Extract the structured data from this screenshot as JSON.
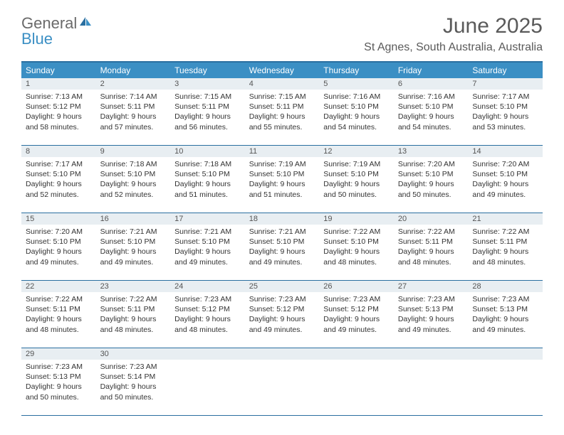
{
  "logo": {
    "text1": "General",
    "text2": "Blue"
  },
  "title": "June 2025",
  "location": "St Agnes, South Australia, Australia",
  "colors": {
    "header_bg": "#3b8fc4",
    "header_text": "#ffffff",
    "border": "#2a6fa0",
    "daynum_bg": "#e8eef2",
    "title_color": "#5a5a5a",
    "logo_gray": "#6a6a6a",
    "logo_blue": "#3b8fc4",
    "cell_text": "#333333"
  },
  "day_names": [
    "Sunday",
    "Monday",
    "Tuesday",
    "Wednesday",
    "Thursday",
    "Friday",
    "Saturday"
  ],
  "weeks": [
    [
      {
        "n": "1",
        "sr": "Sunrise: 7:13 AM",
        "ss": "Sunset: 5:12 PM",
        "dl": "Daylight: 9 hours and 58 minutes."
      },
      {
        "n": "2",
        "sr": "Sunrise: 7:14 AM",
        "ss": "Sunset: 5:11 PM",
        "dl": "Daylight: 9 hours and 57 minutes."
      },
      {
        "n": "3",
        "sr": "Sunrise: 7:15 AM",
        "ss": "Sunset: 5:11 PM",
        "dl": "Daylight: 9 hours and 56 minutes."
      },
      {
        "n": "4",
        "sr": "Sunrise: 7:15 AM",
        "ss": "Sunset: 5:11 PM",
        "dl": "Daylight: 9 hours and 55 minutes."
      },
      {
        "n": "5",
        "sr": "Sunrise: 7:16 AM",
        "ss": "Sunset: 5:10 PM",
        "dl": "Daylight: 9 hours and 54 minutes."
      },
      {
        "n": "6",
        "sr": "Sunrise: 7:16 AM",
        "ss": "Sunset: 5:10 PM",
        "dl": "Daylight: 9 hours and 54 minutes."
      },
      {
        "n": "7",
        "sr": "Sunrise: 7:17 AM",
        "ss": "Sunset: 5:10 PM",
        "dl": "Daylight: 9 hours and 53 minutes."
      }
    ],
    [
      {
        "n": "8",
        "sr": "Sunrise: 7:17 AM",
        "ss": "Sunset: 5:10 PM",
        "dl": "Daylight: 9 hours and 52 minutes."
      },
      {
        "n": "9",
        "sr": "Sunrise: 7:18 AM",
        "ss": "Sunset: 5:10 PM",
        "dl": "Daylight: 9 hours and 52 minutes."
      },
      {
        "n": "10",
        "sr": "Sunrise: 7:18 AM",
        "ss": "Sunset: 5:10 PM",
        "dl": "Daylight: 9 hours and 51 minutes."
      },
      {
        "n": "11",
        "sr": "Sunrise: 7:19 AM",
        "ss": "Sunset: 5:10 PM",
        "dl": "Daylight: 9 hours and 51 minutes."
      },
      {
        "n": "12",
        "sr": "Sunrise: 7:19 AM",
        "ss": "Sunset: 5:10 PM",
        "dl": "Daylight: 9 hours and 50 minutes."
      },
      {
        "n": "13",
        "sr": "Sunrise: 7:20 AM",
        "ss": "Sunset: 5:10 PM",
        "dl": "Daylight: 9 hours and 50 minutes."
      },
      {
        "n": "14",
        "sr": "Sunrise: 7:20 AM",
        "ss": "Sunset: 5:10 PM",
        "dl": "Daylight: 9 hours and 49 minutes."
      }
    ],
    [
      {
        "n": "15",
        "sr": "Sunrise: 7:20 AM",
        "ss": "Sunset: 5:10 PM",
        "dl": "Daylight: 9 hours and 49 minutes."
      },
      {
        "n": "16",
        "sr": "Sunrise: 7:21 AM",
        "ss": "Sunset: 5:10 PM",
        "dl": "Daylight: 9 hours and 49 minutes."
      },
      {
        "n": "17",
        "sr": "Sunrise: 7:21 AM",
        "ss": "Sunset: 5:10 PM",
        "dl": "Daylight: 9 hours and 49 minutes."
      },
      {
        "n": "18",
        "sr": "Sunrise: 7:21 AM",
        "ss": "Sunset: 5:10 PM",
        "dl": "Daylight: 9 hours and 49 minutes."
      },
      {
        "n": "19",
        "sr": "Sunrise: 7:22 AM",
        "ss": "Sunset: 5:10 PM",
        "dl": "Daylight: 9 hours and 48 minutes."
      },
      {
        "n": "20",
        "sr": "Sunrise: 7:22 AM",
        "ss": "Sunset: 5:11 PM",
        "dl": "Daylight: 9 hours and 48 minutes."
      },
      {
        "n": "21",
        "sr": "Sunrise: 7:22 AM",
        "ss": "Sunset: 5:11 PM",
        "dl": "Daylight: 9 hours and 48 minutes."
      }
    ],
    [
      {
        "n": "22",
        "sr": "Sunrise: 7:22 AM",
        "ss": "Sunset: 5:11 PM",
        "dl": "Daylight: 9 hours and 48 minutes."
      },
      {
        "n": "23",
        "sr": "Sunrise: 7:22 AM",
        "ss": "Sunset: 5:11 PM",
        "dl": "Daylight: 9 hours and 48 minutes."
      },
      {
        "n": "24",
        "sr": "Sunrise: 7:23 AM",
        "ss": "Sunset: 5:12 PM",
        "dl": "Daylight: 9 hours and 48 minutes."
      },
      {
        "n": "25",
        "sr": "Sunrise: 7:23 AM",
        "ss": "Sunset: 5:12 PM",
        "dl": "Daylight: 9 hours and 49 minutes."
      },
      {
        "n": "26",
        "sr": "Sunrise: 7:23 AM",
        "ss": "Sunset: 5:12 PM",
        "dl": "Daylight: 9 hours and 49 minutes."
      },
      {
        "n": "27",
        "sr": "Sunrise: 7:23 AM",
        "ss": "Sunset: 5:13 PM",
        "dl": "Daylight: 9 hours and 49 minutes."
      },
      {
        "n": "28",
        "sr": "Sunrise: 7:23 AM",
        "ss": "Sunset: 5:13 PM",
        "dl": "Daylight: 9 hours and 49 minutes."
      }
    ],
    [
      {
        "n": "29",
        "sr": "Sunrise: 7:23 AM",
        "ss": "Sunset: 5:13 PM",
        "dl": "Daylight: 9 hours and 50 minutes."
      },
      {
        "n": "30",
        "sr": "Sunrise: 7:23 AM",
        "ss": "Sunset: 5:14 PM",
        "dl": "Daylight: 9 hours and 50 minutes."
      },
      null,
      null,
      null,
      null,
      null
    ]
  ]
}
